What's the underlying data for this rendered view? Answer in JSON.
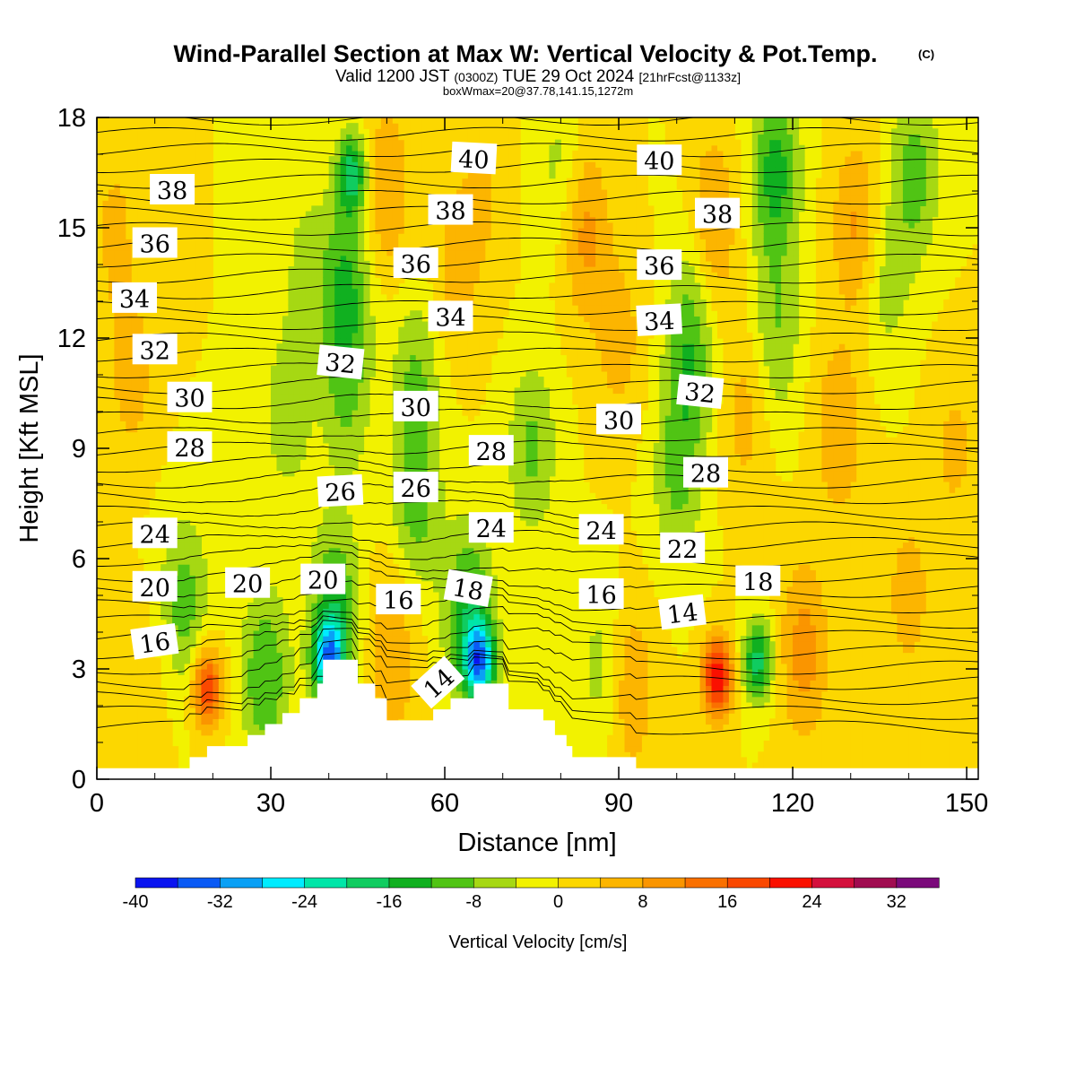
{
  "chart_data": {
    "type": "heatmap",
    "title": "Wind-Parallel Section at Max W: Vertical Velocity & Pot.Temp.",
    "title_mark": "(C)",
    "subtitle_main": "Valid 1200 JST",
    "subtitle_utc": "(0300Z)",
    "subtitle_date": "TUE 29 Oct 2024",
    "subtitle_fcst": "[21hrFcst@1133z]",
    "box_note": "boxWmax=20@37.78,141.15,1272m",
    "xlabel": "Distance [nm]",
    "ylabel": "Height [Kft MSL]",
    "xlim": [
      0,
      152
    ],
    "ylim": [
      0,
      18
    ],
    "x_ticks": [
      0,
      30,
      60,
      90,
      120,
      150
    ],
    "y_ticks": [
      0,
      3,
      6,
      9,
      12,
      15,
      18
    ],
    "colorbar": {
      "label": "Vertical Velocity [cm/s]",
      "min": -40,
      "max": 36,
      "step": 4,
      "tick_values": [
        -40,
        -32,
        -24,
        -16,
        -8,
        0,
        8,
        16,
        24,
        32
      ],
      "tick_labels": [
        "-40",
        "-32",
        "-24",
        "-16",
        "-8",
        "0",
        "8",
        "16",
        "24",
        "32"
      ],
      "colors": [
        "#0a14f0",
        "#0a5af5",
        "#0aa0f5",
        "#00ecff",
        "#00e6a8",
        "#10cc60",
        "#10b020",
        "#50c414",
        "#a6d813",
        "#f2f200",
        "#fcd700",
        "#fcb500",
        "#fa9500",
        "#fa7000",
        "#fa4800",
        "#fa1000",
        "#d4103c",
        "#a00c50",
        "#7a0a7a"
      ]
    },
    "velocity_features": [
      {
        "x": 6,
        "y": 11,
        "w": 6
      },
      {
        "x": 3,
        "y": 15,
        "w": 5
      },
      {
        "x": 8,
        "y": 2,
        "w": 4
      },
      {
        "x": 19,
        "y": 2.5,
        "w": 20
      },
      {
        "x": 15,
        "y": 4.8,
        "w": -10
      },
      {
        "x": 29,
        "y": 2.8,
        "w": -12
      },
      {
        "x": 40,
        "y": 3.2,
        "w": -26
      },
      {
        "x": 41,
        "y": 4.5,
        "w": -14
      },
      {
        "x": 44,
        "y": 16.5,
        "w": -18
      },
      {
        "x": 43,
        "y": 13.5,
        "w": -12
      },
      {
        "x": 43,
        "y": 10.5,
        "w": -8
      },
      {
        "x": 33,
        "y": 10,
        "w": -7
      },
      {
        "x": 36,
        "y": 14,
        "w": -5
      },
      {
        "x": 50,
        "y": 16,
        "w": 8
      },
      {
        "x": 51,
        "y": 3.5,
        "w": 8
      },
      {
        "x": 55,
        "y": 11,
        "w": -8
      },
      {
        "x": 55,
        "y": 7.5,
        "w": -10
      },
      {
        "x": 66,
        "y": 3.2,
        "w": -28
      },
      {
        "x": 64,
        "y": 4.5,
        "w": -14
      },
      {
        "x": 62,
        "y": 14,
        "w": 6
      },
      {
        "x": 67,
        "y": 16,
        "w": 4
      },
      {
        "x": 75,
        "y": 9,
        "w": -9
      },
      {
        "x": 80,
        "y": 16.5,
        "w": -6
      },
      {
        "x": 84,
        "y": 15,
        "w": 10
      },
      {
        "x": 87,
        "y": 3,
        "w": -6
      },
      {
        "x": 90,
        "y": 12,
        "w": 6
      },
      {
        "x": 92,
        "y": 2.5,
        "w": 8
      },
      {
        "x": 100,
        "y": 8,
        "w": -8
      },
      {
        "x": 102,
        "y": 11,
        "w": -10
      },
      {
        "x": 103,
        "y": 13.5,
        "w": -6
      },
      {
        "x": 107,
        "y": 2.8,
        "w": 24
      },
      {
        "x": 106,
        "y": 15,
        "w": 10
      },
      {
        "x": 112,
        "y": 10,
        "w": 6
      },
      {
        "x": 114,
        "y": 3.2,
        "w": -18
      },
      {
        "x": 117,
        "y": 16.5,
        "w": -14
      },
      {
        "x": 117,
        "y": 12,
        "w": -8
      },
      {
        "x": 122,
        "y": 3.5,
        "w": 10
      },
      {
        "x": 128,
        "y": 9.5,
        "w": 8
      },
      {
        "x": 131,
        "y": 15,
        "w": 9
      },
      {
        "x": 141,
        "y": 16.5,
        "w": -10
      },
      {
        "x": 136,
        "y": 13.5,
        "w": -6
      },
      {
        "x": 140,
        "y": 5,
        "w": 6
      },
      {
        "x": 148,
        "y": 9,
        "w": 5
      }
    ],
    "terrain_kft": [
      [
        0,
        0.3
      ],
      [
        16,
        0.3
      ],
      [
        16,
        0.6
      ],
      [
        19,
        0.6
      ],
      [
        19,
        0.9
      ],
      [
        26,
        0.9
      ],
      [
        26,
        1.2
      ],
      [
        29,
        1.2
      ],
      [
        29,
        1.5
      ],
      [
        32,
        1.5
      ],
      [
        32,
        1.8
      ],
      [
        35,
        1.8
      ],
      [
        35,
        2.2
      ],
      [
        38,
        2.2
      ],
      [
        38,
        2.6
      ],
      [
        39,
        2.6
      ],
      [
        39,
        3.25
      ],
      [
        45,
        3.25
      ],
      [
        45,
        2.6
      ],
      [
        48,
        2.6
      ],
      [
        48,
        2.2
      ],
      [
        50,
        2.2
      ],
      [
        50,
        1.6
      ],
      [
        58,
        1.6
      ],
      [
        58,
        1.9
      ],
      [
        61,
        1.9
      ],
      [
        61,
        2.2
      ],
      [
        65,
        2.2
      ],
      [
        65,
        2.6
      ],
      [
        71,
        2.6
      ],
      [
        71,
        1.9
      ],
      [
        77,
        1.9
      ],
      [
        77,
        1.6
      ],
      [
        79,
        1.6
      ],
      [
        79,
        1.2
      ],
      [
        81,
        1.2
      ],
      [
        81,
        0.9
      ],
      [
        82,
        0.9
      ],
      [
        82,
        0.6
      ],
      [
        93,
        0.6
      ],
      [
        93,
        0.3
      ],
      [
        152,
        0.3
      ]
    ],
    "theta_labels": [
      {
        "text": "38",
        "x": 13,
        "y": 16.0,
        "rot": 0
      },
      {
        "text": "36",
        "x": 10,
        "y": 14.55,
        "rot": 0
      },
      {
        "text": "34",
        "x": 6.5,
        "y": 13.05,
        "rot": 0
      },
      {
        "text": "32",
        "x": 10,
        "y": 11.65,
        "rot": 0
      },
      {
        "text": "30",
        "x": 16,
        "y": 10.35,
        "rot": 0
      },
      {
        "text": "28",
        "x": 16,
        "y": 9.0,
        "rot": 0
      },
      {
        "text": "24",
        "x": 10,
        "y": 6.65,
        "rot": 0
      },
      {
        "text": "20",
        "x": 10,
        "y": 5.2,
        "rot": 0
      },
      {
        "text": "16",
        "x": 10,
        "y": 3.7,
        "rot": -8
      },
      {
        "text": "20",
        "x": 26,
        "y": 5.3,
        "rot": 0
      },
      {
        "text": "20",
        "x": 39,
        "y": 5.4,
        "rot": 0
      },
      {
        "text": "32",
        "x": 42,
        "y": 11.3,
        "rot": 6
      },
      {
        "text": "26",
        "x": 42,
        "y": 7.8,
        "rot": -3
      },
      {
        "text": "40",
        "x": 65,
        "y": 16.85,
        "rot": 3
      },
      {
        "text": "38",
        "x": 61,
        "y": 15.45,
        "rot": 0
      },
      {
        "text": "36",
        "x": 55,
        "y": 14.0,
        "rot": 0
      },
      {
        "text": "34",
        "x": 61,
        "y": 12.55,
        "rot": 0
      },
      {
        "text": "30",
        "x": 55,
        "y": 10.1,
        "rot": 0
      },
      {
        "text": "26",
        "x": 55,
        "y": 7.9,
        "rot": 0
      },
      {
        "text": "28",
        "x": 68,
        "y": 8.9,
        "rot": 0
      },
      {
        "text": "24",
        "x": 68,
        "y": 6.8,
        "rot": 0
      },
      {
        "text": "16",
        "x": 52,
        "y": 4.85,
        "rot": 0
      },
      {
        "text": "18",
        "x": 64,
        "y": 5.15,
        "rot": 10
      },
      {
        "text": "14",
        "x": 59,
        "y": 2.6,
        "rot": -42
      },
      {
        "text": "40",
        "x": 97,
        "y": 16.8,
        "rot": 0
      },
      {
        "text": "38",
        "x": 107,
        "y": 15.35,
        "rot": 0
      },
      {
        "text": "36",
        "x": 97,
        "y": 13.95,
        "rot": 0
      },
      {
        "text": "34",
        "x": 97,
        "y": 12.45,
        "rot": -3
      },
      {
        "text": "32",
        "x": 104,
        "y": 10.5,
        "rot": 6
      },
      {
        "text": "30",
        "x": 90,
        "y": 9.75,
        "rot": 0
      },
      {
        "text": "28",
        "x": 105,
        "y": 8.3,
        "rot": 0
      },
      {
        "text": "24",
        "x": 87,
        "y": 6.75,
        "rot": 0
      },
      {
        "text": "22",
        "x": 101,
        "y": 6.25,
        "rot": 0
      },
      {
        "text": "16",
        "x": 87,
        "y": 5.0,
        "rot": 0
      },
      {
        "text": "18",
        "x": 114,
        "y": 5.35,
        "rot": 0
      },
      {
        "text": "14",
        "x": 101,
        "y": 4.5,
        "rot": -7
      }
    ]
  }
}
